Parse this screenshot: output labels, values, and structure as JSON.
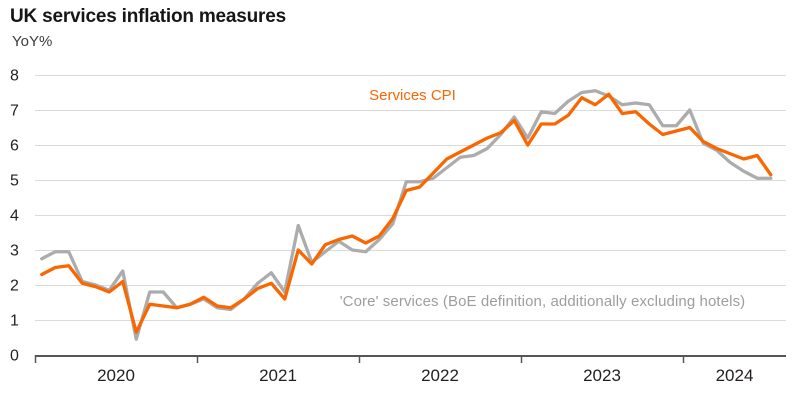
{
  "header": {
    "title": "UK services inflation measures",
    "y_axis_unit": "YoY%"
  },
  "colors": {
    "services_cpi": "#F96702",
    "core_services": "#ACACAC",
    "gridline": "#DADADA",
    "axis": "#55565A",
    "tick_label": "#231F20",
    "core_label_text": "#9D9D9D"
  },
  "chart_data": {
    "type": "line",
    "title": "UK services inflation measures",
    "ylabel": "YoY%",
    "xlabel": "",
    "ylim": [
      0,
      8
    ],
    "y_ticks": [
      0,
      1,
      2,
      3,
      4,
      5,
      6,
      7,
      8
    ],
    "x_tick_years": [
      "2020",
      "2021",
      "2022",
      "2023",
      "2024"
    ],
    "grid": "horizontal",
    "legend_position": "inline-annotations",
    "x": [
      "2020-01",
      "2020-02",
      "2020-03",
      "2020-04",
      "2020-05",
      "2020-06",
      "2020-07",
      "2020-08",
      "2020-09",
      "2020-10",
      "2020-11",
      "2020-12",
      "2021-01",
      "2021-02",
      "2021-03",
      "2021-04",
      "2021-05",
      "2021-06",
      "2021-07",
      "2021-08",
      "2021-09",
      "2021-10",
      "2021-11",
      "2021-12",
      "2022-01",
      "2022-02",
      "2022-03",
      "2022-04",
      "2022-05",
      "2022-06",
      "2022-07",
      "2022-08",
      "2022-09",
      "2022-10",
      "2022-11",
      "2022-12",
      "2023-01",
      "2023-02",
      "2023-03",
      "2023-04",
      "2023-05",
      "2023-06",
      "2023-07",
      "2023-08",
      "2023-09",
      "2023-10",
      "2023-11",
      "2023-12",
      "2024-01",
      "2024-02",
      "2024-03",
      "2024-04",
      "2024-05",
      "2024-06",
      "2024-07"
    ],
    "series": [
      {
        "name": "'Core' services (BoE definition, additionally excluding hotels)",
        "color": "#ACACAC",
        "values": [
          2.75,
          2.95,
          2.95,
          2.1,
          2.0,
          1.85,
          2.4,
          0.45,
          1.8,
          1.8,
          1.35,
          1.45,
          1.6,
          1.35,
          1.3,
          1.6,
          2.05,
          2.35,
          1.8,
          3.7,
          2.65,
          2.95,
          3.25,
          3.0,
          2.95,
          3.3,
          3.75,
          4.95,
          4.95,
          5.05,
          5.35,
          5.65,
          5.7,
          5.9,
          6.3,
          6.8,
          6.2,
          6.95,
          6.9,
          7.25,
          7.5,
          7.55,
          7.4,
          7.15,
          7.2,
          7.15,
          6.55,
          6.55,
          7.0,
          6.05,
          5.85,
          5.5,
          5.25,
          5.05,
          5.05
        ]
      },
      {
        "name": "Services CPI",
        "color": "#F96702",
        "values": [
          2.3,
          2.5,
          2.55,
          2.05,
          1.95,
          1.8,
          2.1,
          0.65,
          1.45,
          1.4,
          1.35,
          1.45,
          1.65,
          1.4,
          1.35,
          1.6,
          1.9,
          2.05,
          1.6,
          3.0,
          2.6,
          3.15,
          3.3,
          3.4,
          3.2,
          3.4,
          3.9,
          4.7,
          4.8,
          5.2,
          5.6,
          5.8,
          6.0,
          6.2,
          6.35,
          6.7,
          6.0,
          6.6,
          6.6,
          6.85,
          7.35,
          7.15,
          7.45,
          6.9,
          6.95,
          6.6,
          6.3,
          6.4,
          6.5,
          6.1,
          5.9,
          5.75,
          5.6,
          5.7,
          5.15
        ]
      }
    ]
  }
}
